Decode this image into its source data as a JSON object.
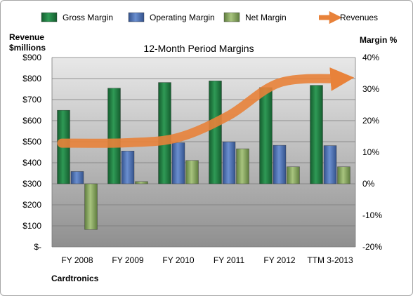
{
  "chart_data": {
    "type": "bar",
    "title": "12-Month Period Margins",
    "categories": [
      "FY 2008",
      "FY 2009",
      "FY 2010",
      "FY 2011",
      "FY 2012",
      "TTM 3-2013"
    ],
    "left_axis": {
      "label_line1": "Revenue",
      "label_line2": "$millions",
      "ticks": [
        "$900",
        "$800",
        "$700",
        "$600",
        "$500",
        "$400",
        "$300",
        "$200",
        "$100",
        "$-"
      ],
      "range": [
        0,
        900
      ]
    },
    "right_axis": {
      "label": "Margin %",
      "ticks": [
        "40%",
        "30%",
        "20%",
        "10%",
        "0%",
        "-10%",
        "-20%"
      ],
      "range": [
        -20,
        40
      ]
    },
    "series": [
      {
        "name": "Gross Margin",
        "kind": "bar",
        "axis": "right",
        "color": "#1e7a40",
        "values": [
          23.3,
          30.3,
          32.1,
          32.6,
          30.5,
          31.2
        ]
      },
      {
        "name": "Operating Margin",
        "kind": "bar",
        "axis": "right",
        "color": "#4a6fb5",
        "values": [
          3.9,
          10.4,
          13.0,
          13.3,
          12.2,
          12.1
        ]
      },
      {
        "name": "Net Margin",
        "kind": "bar",
        "axis": "right",
        "color": "#88a860",
        "values": [
          -14.5,
          0.7,
          7.4,
          11.1,
          5.4,
          5.4
        ]
      },
      {
        "name": "Revenues",
        "kind": "line",
        "axis": "left",
        "color": "#e8823a",
        "values": [
          493,
          495,
          520,
          625,
          780,
          800
        ]
      }
    ],
    "legend_position": "top",
    "grid": true,
    "footnote": "Cardtronics"
  }
}
